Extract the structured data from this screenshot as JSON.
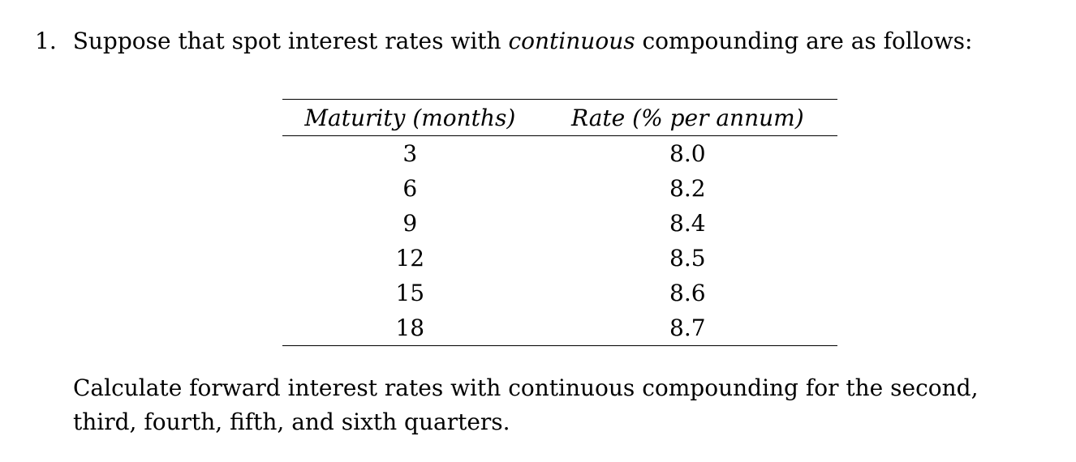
{
  "page": {
    "background_color": "#ffffff",
    "text_color": "#000000"
  },
  "problem": {
    "number": "1.",
    "intro": {
      "prefix": "Suppose that spot interest rates with ",
      "emphasis": "continuous",
      "suffix": " compounding are as follows:"
    },
    "table": {
      "headers": [
        "Maturity (months)",
        "Rate (% per annum)"
      ],
      "rows": [
        [
          "3",
          "8.0"
        ],
        [
          "6",
          "8.2"
        ],
        [
          "9",
          "8.4"
        ],
        [
          "12",
          "8.5"
        ],
        [
          "15",
          "8.6"
        ],
        [
          "18",
          "8.7"
        ]
      ]
    },
    "question_lines": [
      "Calculate forward interest rates with continuous compounding for the second,",
      "third, fourth, fifth, and sixth quarters."
    ]
  }
}
